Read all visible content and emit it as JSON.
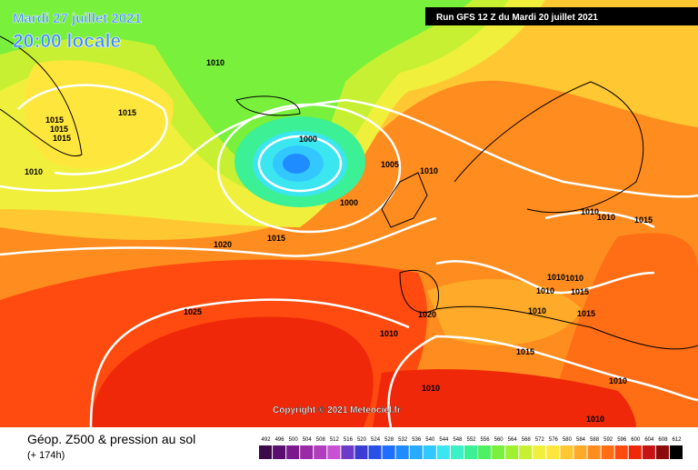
{
  "header": {
    "date": "Mardi 27 juillet 2021",
    "time": "20:00 locale",
    "run": "Run GFS 12 Z du Mardi 20 juillet 2021"
  },
  "copyright": "Copyright © 2021 Meteociel.fr",
  "legend": {
    "title": "Géop. Z500 & pression au sol",
    "lead": "(+ 174h)",
    "scale": [
      492,
      496,
      500,
      504,
      508,
      512,
      516,
      520,
      524,
      528,
      532,
      536,
      540,
      544,
      548,
      552,
      556,
      560,
      564,
      568,
      572,
      576,
      580,
      584,
      588,
      592,
      596,
      600,
      604,
      608,
      612
    ],
    "colors": [
      "#3a0a4a",
      "#5a0f6e",
      "#7a1a8e",
      "#9a2aa8",
      "#b03cbe",
      "#c850d2",
      "#6c3cc8",
      "#3c3cd2",
      "#2850e6",
      "#1e6eff",
      "#1e8cff",
      "#28aaff",
      "#32c8ff",
      "#3ce6f0",
      "#3cf0c8",
      "#3cf096",
      "#50f064",
      "#78f03c",
      "#a0f032",
      "#c8f032",
      "#f0f03c",
      "#ffe63c",
      "#ffc832",
      "#ffaa28",
      "#ff8c1e",
      "#ff6e14",
      "#ff4b0f",
      "#f0280a",
      "#c81414",
      "#8c0a0a",
      "#000000"
    ]
  },
  "isobars": [
    "1010",
    "1015",
    "1010",
    "1015",
    "1015",
    "1015",
    "1000",
    "1005",
    "1010",
    "1000",
    "1020",
    "1015",
    "1025",
    "1020",
    "1010",
    "1015",
    "1010",
    "1010",
    "1015",
    "1010",
    "1010",
    "1010",
    "1015",
    "1015",
    "1010",
    "1010",
    "1010",
    "1010"
  ]
}
